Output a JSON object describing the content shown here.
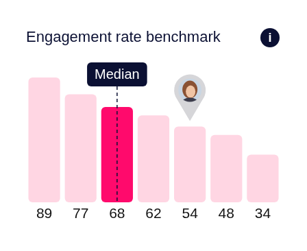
{
  "chart_data": {
    "type": "bar",
    "title": "Engagement rate benchmark",
    "categories": [
      null,
      null,
      null,
      null,
      null,
      null,
      null
    ],
    "values": [
      89,
      77,
      68,
      62,
      54,
      48,
      34
    ],
    "colors": [
      "#ffd6e3",
      "#ffd6e3",
      "#ff0a6c",
      "#ffd6e3",
      "#ffd6e3",
      "#ffd6e3",
      "#ffd6e3"
    ],
    "data_labels": true,
    "tick_labels": false,
    "grid": false,
    "annotations": [
      {
        "text": "i",
        "marker": "info"
      },
      {
        "text": "Median",
        "x": 2,
        "line_style": "dashed"
      },
      {
        "marker": "pin",
        "x": 4
      }
    ]
  }
}
